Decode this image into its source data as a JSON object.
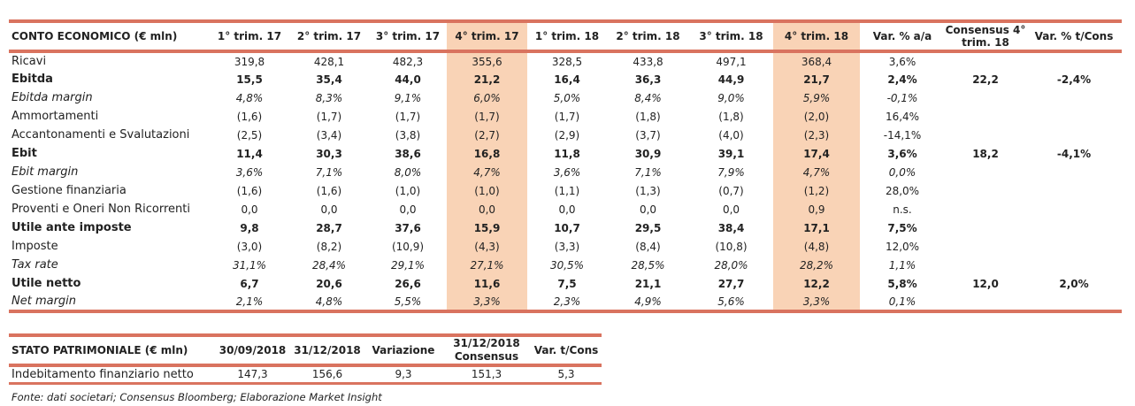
{
  "income": {
    "headers": [
      "CONTO ECONOMICO (€ mln)",
      "1° trim. 17",
      "2° trim. 17",
      "3° trim. 17",
      "4° trim. 17",
      "1° trim. 18",
      "2° trim. 18",
      "3° trim. 18",
      "4° trim. 18",
      "Var. % a/a",
      "Consensus 4° trim. 18",
      "Var. % t/Cons"
    ],
    "rows": [
      {
        "cells": [
          "Ricavi",
          "319,8",
          "428,1",
          "482,3",
          "355,6",
          "328,5",
          "433,8",
          "497,1",
          "368,4",
          "3,6%",
          "",
          ""
        ]
      },
      {
        "cells": [
          "Ebitda",
          "15,5",
          "35,4",
          "44,0",
          "21,2",
          "16,4",
          "36,3",
          "44,9",
          "21,7",
          "2,4%",
          "22,2",
          "-2,4%"
        ]
      },
      {
        "cells": [
          "Ebitda margin",
          "4,8%",
          "8,3%",
          "9,1%",
          "6,0%",
          "5,0%",
          "8,4%",
          "9,0%",
          "5,9%",
          "-0,1%",
          "",
          ""
        ]
      },
      {
        "cells": [
          "Ammortamenti",
          "(1,6)",
          "(1,7)",
          "(1,7)",
          "(1,7)",
          "(1,7)",
          "(1,8)",
          "(1,8)",
          "(2,0)",
          "16,4%",
          "",
          ""
        ]
      },
      {
        "cells": [
          "Accantonamenti e Svalutazioni",
          "(2,5)",
          "(3,4)",
          "(3,8)",
          "(2,7)",
          "(2,9)",
          "(3,7)",
          "(4,0)",
          "(2,3)",
          "-14,1%",
          "",
          ""
        ]
      },
      {
        "cells": [
          "Ebit",
          "11,4",
          "30,3",
          "38,6",
          "16,8",
          "11,8",
          "30,9",
          "39,1",
          "17,4",
          "3,6%",
          "18,2",
          "-4,1%"
        ]
      },
      {
        "cells": [
          "Ebit margin",
          "3,6%",
          "7,1%",
          "8,0%",
          "4,7%",
          "3,6%",
          "7,1%",
          "7,9%",
          "4,7%",
          "0,0%",
          "",
          ""
        ]
      },
      {
        "cells": [
          "Gestione finanziaria",
          "(1,6)",
          "(1,6)",
          "(1,0)",
          "(1,0)",
          "(1,1)",
          "(1,3)",
          "(0,7)",
          "(1,2)",
          "28,0%",
          "",
          ""
        ]
      },
      {
        "cells": [
          "Proventi e Oneri Non Ricorrenti",
          "0,0",
          "0,0",
          "0,0",
          "0,0",
          "0,0",
          "0,0",
          "0,0",
          "0,9",
          "n.s.",
          "",
          ""
        ]
      },
      {
        "cells": [
          "Utile ante imposte",
          "9,8",
          "28,7",
          "37,6",
          "15,9",
          "10,7",
          "29,5",
          "38,4",
          "17,1",
          "7,5%",
          "",
          ""
        ]
      },
      {
        "cells": [
          "Imposte",
          "(3,0)",
          "(8,2)",
          "(10,9)",
          "(4,3)",
          "(3,3)",
          "(8,4)",
          "(10,8)",
          "(4,8)",
          "12,0%",
          "",
          ""
        ]
      },
      {
        "cells": [
          "Tax rate",
          "31,1%",
          "28,4%",
          "29,1%",
          "27,1%",
          "30,5%",
          "28,5%",
          "28,0%",
          "28,2%",
          "1,1%",
          "",
          ""
        ]
      },
      {
        "cells": [
          "Utile netto",
          "6,7",
          "20,6",
          "26,6",
          "11,6",
          "7,5",
          "21,1",
          "27,7",
          "12,2",
          "5,8%",
          "12,0",
          "2,0%"
        ]
      },
      {
        "cells": [
          "Net margin",
          "2,1%",
          "4,8%",
          "5,5%",
          "3,3%",
          "2,3%",
          "4,9%",
          "5,6%",
          "3,3%",
          "0,1%",
          "",
          ""
        ]
      }
    ]
  },
  "balance": {
    "headers": [
      "STATO PATRIMONIALE (€ mln)",
      "30/09/2018",
      "31/12/2018",
      "Variazione",
      "31/12/2018 Consensus",
      "Var. t/Cons"
    ],
    "row": [
      "Indebitamento finanziario netto",
      "147,3",
      "156,6",
      "9,3",
      "151,3",
      "5,3"
    ]
  },
  "source": "Fonte: dati societari; Consensus Bloomberg; Elaborazione Market Insight",
  "colors": {
    "rule": "#d9735f",
    "highlight": "#f9d3b6"
  }
}
